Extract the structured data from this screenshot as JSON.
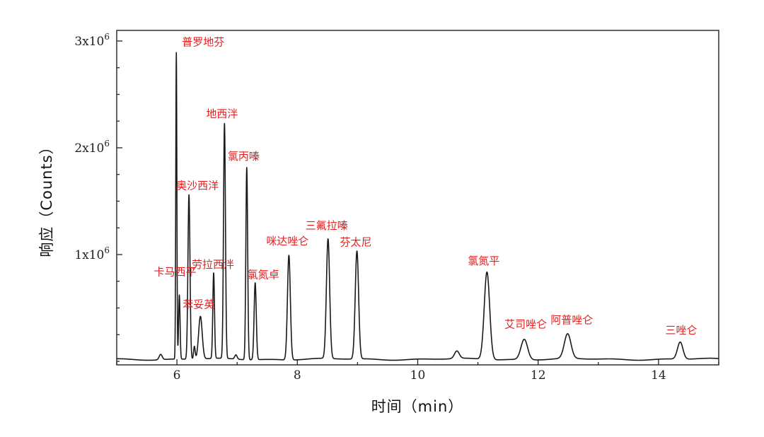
{
  "chart_data": {
    "type": "line",
    "xlabel": "时间（min）",
    "ylabel": "响应（Counts）",
    "xlim": [
      5,
      15
    ],
    "ylim": [
      0,
      3000000
    ],
    "baseline": 20000,
    "x_ticks": [
      6,
      8,
      10,
      12,
      14
    ],
    "y_ticks": [
      {
        "value": 1000000,
        "base": "1x10",
        "exp": "6"
      },
      {
        "value": 2000000,
        "base": "2x10",
        "exp": "6"
      },
      {
        "value": 3000000,
        "base": "3x10",
        "exp": "6"
      }
    ],
    "grid": false,
    "line_color": "#1a1a1a",
    "label_color": "#e02020",
    "peaks": [
      {
        "rt": 5.73,
        "height": 50000,
        "width": 0.025,
        "label": ""
      },
      {
        "rt": 5.99,
        "height": 2870000,
        "width": 0.009,
        "label": "普罗地芬"
      },
      {
        "rt": 6.04,
        "height": 600000,
        "width": 0.012,
        "label": "卡马西平"
      },
      {
        "rt": 6.2,
        "height": 1540000,
        "width": 0.017,
        "label": "奥沙西洋"
      },
      {
        "rt": 6.29,
        "height": 120000,
        "width": 0.013,
        "label": ""
      },
      {
        "rt": 6.39,
        "height": 400000,
        "width": 0.03,
        "label": "苯妥英"
      },
      {
        "rt": 6.61,
        "height": 800000,
        "width": 0.014,
        "label": "劳拉西泮"
      },
      {
        "rt": 6.79,
        "height": 2200000,
        "width": 0.016,
        "label": "地西泮"
      },
      {
        "rt": 6.98,
        "height": 40000,
        "width": 0.02,
        "label": ""
      },
      {
        "rt": 7.16,
        "height": 1800000,
        "width": 0.015,
        "label": "氯丙嗪"
      },
      {
        "rt": 7.3,
        "height": 720000,
        "width": 0.018,
        "label": "氯氮卓"
      },
      {
        "rt": 7.86,
        "height": 980000,
        "width": 0.024,
        "label": "咪达唑仑"
      },
      {
        "rt": 8.51,
        "height": 1120000,
        "width": 0.027,
        "label": "三氟拉嗪"
      },
      {
        "rt": 8.99,
        "height": 1010000,
        "width": 0.028,
        "label": "芬太尼"
      },
      {
        "rt": 10.65,
        "height": 70000,
        "width": 0.04,
        "label": ""
      },
      {
        "rt": 11.15,
        "height": 820000,
        "width": 0.045,
        "label": "氯氮平"
      },
      {
        "rt": 11.77,
        "height": 190000,
        "width": 0.055,
        "label": "艾司唑仑"
      },
      {
        "rt": 12.49,
        "height": 230000,
        "width": 0.055,
        "label": "阿普唑仑"
      },
      {
        "rt": 14.36,
        "height": 160000,
        "width": 0.045,
        "label": "三唑仑"
      }
    ]
  }
}
